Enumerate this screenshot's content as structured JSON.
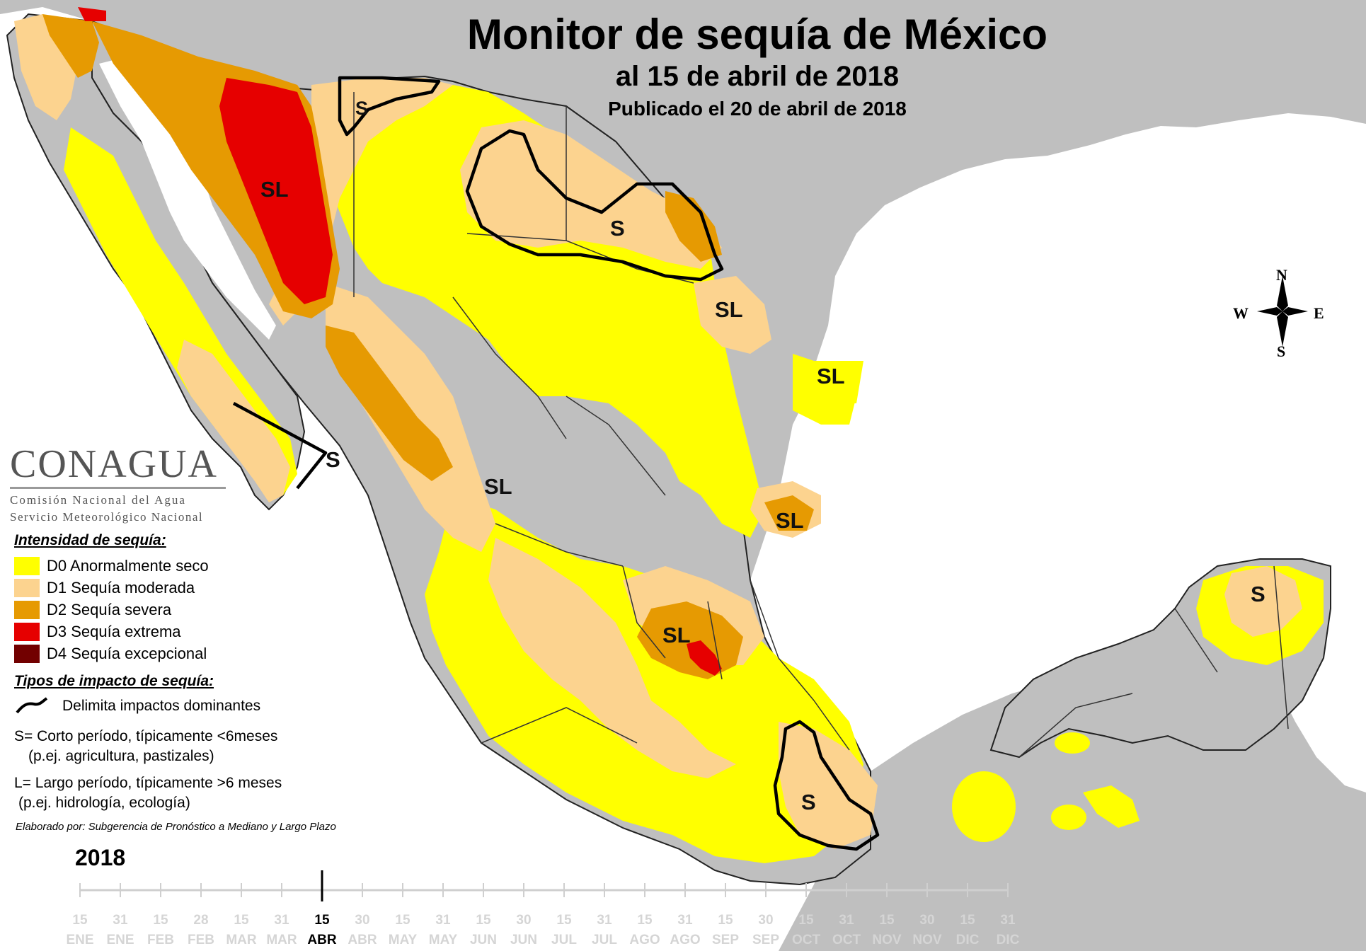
{
  "title": "Monitor de sequía de México",
  "subtitle": "al 15 de abril de 2018",
  "published": "Publicado el 20 de abril de 2018",
  "colors": {
    "ocean": "#ffffff",
    "land": "#bfbfbf",
    "D0": "#ffff00",
    "D1": "#fcd38f",
    "D2": "#e69a02",
    "D3": "#e60000",
    "D4": "#720000",
    "border": "#222222"
  },
  "region_labels": [
    "S",
    "SL",
    "S",
    "SL",
    "SL",
    "S",
    "SL",
    "SL",
    "SL",
    "S",
    "S"
  ],
  "compass": {
    "n": "N",
    "s": "S",
    "e": "E",
    "w": "W"
  },
  "logo": {
    "name": "CONAGUA",
    "line1": "Comisión Nacional del Agua",
    "line2": "Servicio Meteorológico Nacional"
  },
  "legend": {
    "intensity_title": "Intensidad de sequía:",
    "items": [
      {
        "code": "D0",
        "label": "D0 Anormalmente seco"
      },
      {
        "code": "D1",
        "label": "D1 Sequía moderada"
      },
      {
        "code": "D2",
        "label": "D2 Sequía severa"
      },
      {
        "code": "D3",
        "label": "D3 Sequía extrema"
      },
      {
        "code": "D4",
        "label": "D4 Sequía excepcional"
      }
    ],
    "impact_title": "Tipos de impacto de sequía:",
    "impact_line": "Delimita impactos dominantes",
    "s_line1": "S= Corto período, típicamente <6meses",
    "s_line2": "(p.ej. agricultura, pastizales)",
    "l_line1": "L= Largo período, típicamente >6 meses",
    "l_line2": "(p.ej. hidrología, ecología)"
  },
  "credit": "Elaborado por: Subgerencia de Pronóstico a Mediano y Largo Plazo",
  "timeline": {
    "year": "2018",
    "current_index": 6,
    "days": [
      "15",
      "31",
      "15",
      "28",
      "15",
      "31",
      "15",
      "30",
      "15",
      "31",
      "15",
      "30",
      "15",
      "31",
      "15",
      "31",
      "15",
      "30",
      "15",
      "31",
      "15",
      "30",
      "15",
      "31"
    ],
    "months": [
      "ENE",
      "ENE",
      "FEB",
      "FEB",
      "MAR",
      "MAR",
      "ABR",
      "ABR",
      "MAY",
      "MAY",
      "JUN",
      "JUN",
      "JUL",
      "JUL",
      "AGO",
      "AGO",
      "SEP",
      "SEP",
      "OCT",
      "OCT",
      "NOV",
      "NOV",
      "DIC",
      "DIC"
    ]
  }
}
